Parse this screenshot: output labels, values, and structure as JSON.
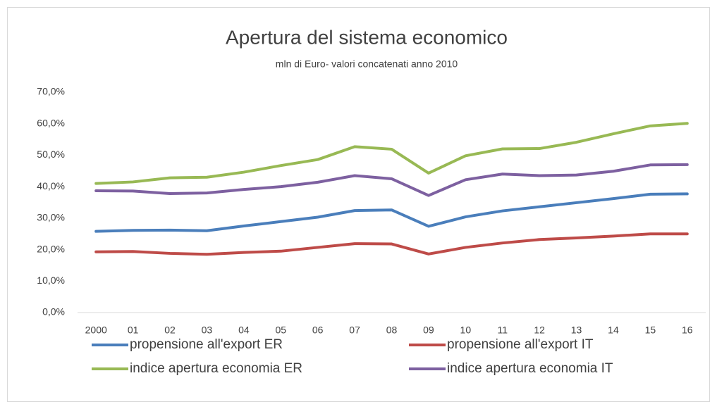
{
  "chart_data": {
    "type": "line",
    "title": "Apertura del sistema economico",
    "subtitle": "mln di Euro- valori concatenati anno 2010",
    "categories": [
      "2000",
      "01",
      "02",
      "03",
      "04",
      "05",
      "06",
      "07",
      "08",
      "09",
      "10",
      "11",
      "12",
      "13",
      "14",
      "15",
      "16"
    ],
    "series": [
      {
        "name": "propensione all'export ER",
        "color": "#4a7ebb",
        "values": [
          25.8,
          26.1,
          26.2,
          26.0,
          27.5,
          28.9,
          30.3,
          32.4,
          32.6,
          27.4,
          30.4,
          32.3,
          33.6,
          34.9,
          36.2,
          37.6,
          37.7
        ]
      },
      {
        "name": "propensione all'export IT",
        "color": "#be4b48",
        "values": [
          19.3,
          19.4,
          18.8,
          18.5,
          19.1,
          19.5,
          20.7,
          21.9,
          21.8,
          18.6,
          20.7,
          22.1,
          23.2,
          23.7,
          24.3,
          25.0,
          25.0
        ]
      },
      {
        "name": "indice apertura economia ER",
        "color": "#98b954",
        "values": [
          41.0,
          41.5,
          42.8,
          43.0,
          44.6,
          46.7,
          48.6,
          52.7,
          51.9,
          44.3,
          49.8,
          52.0,
          52.1,
          54.1,
          56.8,
          59.3,
          60.1
        ]
      },
      {
        "name": "indice apertura economia IT",
        "color": "#7d60a0",
        "values": [
          38.7,
          38.6,
          37.8,
          38.0,
          39.1,
          40.0,
          41.4,
          43.5,
          42.5,
          37.2,
          42.2,
          44.0,
          43.5,
          43.7,
          44.9,
          46.9,
          47.0
        ]
      }
    ],
    "ylim": [
      0,
      70
    ],
    "yticks": [
      {
        "value": 0,
        "label": "0,0%"
      },
      {
        "value": 10,
        "label": "10,0%"
      },
      {
        "value": 20,
        "label": "20,0%"
      },
      {
        "value": 30,
        "label": "30,0%"
      },
      {
        "value": 40,
        "label": "40,0%"
      },
      {
        "value": 50,
        "label": "50,0%"
      },
      {
        "value": 60,
        "label": "60,0%"
      },
      {
        "value": 70,
        "label": "70,0%"
      }
    ],
    "grid": false,
    "legend": "bottom"
  }
}
